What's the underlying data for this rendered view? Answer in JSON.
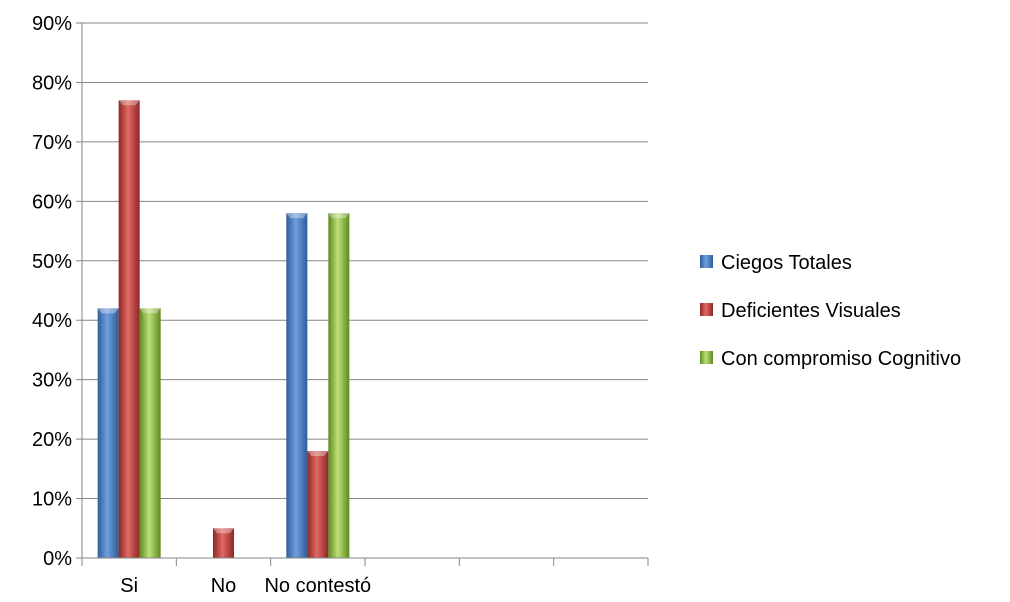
{
  "chart_data": {
    "type": "bar",
    "categories": [
      "Si",
      "No",
      "No contestó",
      "",
      "",
      ""
    ],
    "series": [
      {
        "name": "Ciegos Totales",
        "color": "#4F81BD",
        "values": [
          42,
          0,
          58,
          null,
          null,
          null
        ]
      },
      {
        "name": "Deficientes Visuales",
        "color": "#C0504D",
        "values": [
          77,
          5,
          18,
          null,
          null,
          null
        ]
      },
      {
        "name": "Con compromiso Cognitivo",
        "color": "#9BBB59",
        "values": [
          42,
          0,
          58,
          null,
          null,
          null
        ]
      }
    ],
    "yticks": [
      "0%",
      "10%",
      "20%",
      "30%",
      "40%",
      "50%",
      "60%",
      "70%",
      "80%",
      "90%"
    ],
    "ylim": [
      0,
      90
    ],
    "unit": "%",
    "grid": true,
    "legend": "right"
  }
}
